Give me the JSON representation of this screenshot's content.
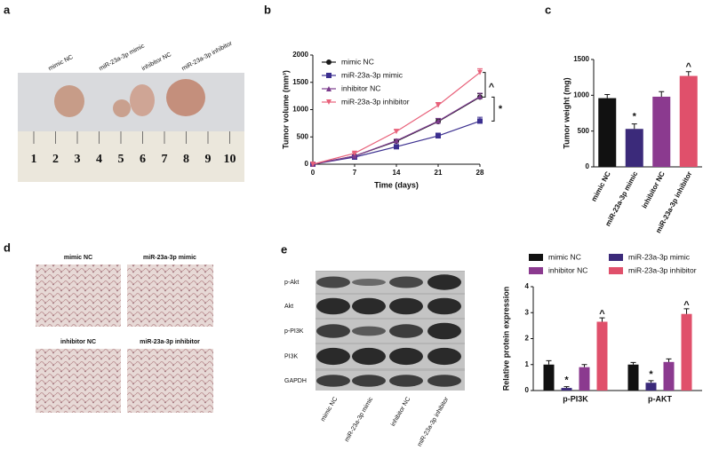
{
  "panels": {
    "a": {
      "letter": "a",
      "groups": [
        "mimic NC",
        "miR-23a-3p mimic",
        "inhibitor NC",
        "miR-23a-3p inhibitor"
      ],
      "ruler": [
        1,
        2,
        3,
        4,
        5,
        6,
        7,
        8,
        9,
        10
      ]
    },
    "d": {
      "letter": "d",
      "images": [
        "mimic NC",
        "miR-23a-3p mimic",
        "inhibitor NC",
        "miR-23a-3p inhibitor"
      ]
    },
    "e": {
      "letter": "e",
      "proteins": [
        "p-Akt",
        "Akt",
        "p-PI3K",
        "PI3K",
        "GAPDH"
      ],
      "lanes": [
        "mimic NC",
        "miR-23a-3p mimic",
        "inhibitor NC",
        "miR-23a-3p inhibitor"
      ]
    }
  },
  "chart_data": [
    {
      "panel": "b",
      "type": "line",
      "x_label": "Time (days)",
      "y_label": "Tumor volume (mm³)",
      "x": [
        0,
        7,
        14,
        21,
        28
      ],
      "xlim": [
        0,
        28
      ],
      "xticks": [
        0,
        7,
        14,
        21,
        28
      ],
      "ylim": [
        0,
        2000
      ],
      "yticks": [
        0,
        500,
        1000,
        1500,
        2000
      ],
      "legend": "upper left",
      "series": [
        {
          "name": "mimic NC",
          "color": "#1a1a1a",
          "marker": "circle",
          "values": [
            0,
            150,
            420,
            780,
            1230
          ],
          "errors": [
            0,
            20,
            30,
            50,
            60
          ]
        },
        {
          "name": "miR-23a-3p mimic",
          "color": "#3b2f8f",
          "marker": "square",
          "values": [
            0,
            130,
            320,
            520,
            790
          ],
          "errors": [
            0,
            20,
            30,
            50,
            70
          ]
        },
        {
          "name": "inhibitor NC",
          "color": "#7b3b8c",
          "marker": "triangle",
          "values": [
            0,
            150,
            430,
            790,
            1240
          ],
          "errors": [
            0,
            20,
            30,
            50,
            60
          ]
        },
        {
          "name": "miR-23a-3p inhibitor",
          "color": "#e8617a",
          "marker": "triangle-down",
          "values": [
            0,
            200,
            600,
            1080,
            1680
          ],
          "errors": [
            0,
            20,
            30,
            50,
            70
          ]
        }
      ],
      "annotations": [
        {
          "text": "^",
          "between": [
            "miR-23a-3p inhibitor",
            "mimic NC"
          ]
        },
        {
          "text": "*",
          "between": [
            "mimic NC",
            "miR-23a-3p mimic"
          ]
        }
      ]
    },
    {
      "panel": "c",
      "type": "bar",
      "y_label": "Tumor weight (mg)",
      "categories": [
        "mimic NC",
        "miR-23a-3p mimic",
        "inhibitor NC",
        "miR-23a-3p inhibitor"
      ],
      "values": [
        960,
        530,
        980,
        1270
      ],
      "errors": [
        50,
        70,
        70,
        60
      ],
      "colors": [
        "#111111",
        "#3b2a7a",
        "#8b3a8f",
        "#e0506b"
      ],
      "ylim": [
        0,
        1500
      ],
      "yticks": [
        0,
        500,
        1000,
        1500
      ],
      "annotations": [
        {
          "text": "*",
          "category": "miR-23a-3p mimic"
        },
        {
          "text": "^",
          "category": "miR-23a-3p inhibitor"
        }
      ]
    },
    {
      "panel": "",
      "type": "grouped_bar",
      "y_label": "Relative protein expression",
      "categories": [
        "p-PI3K",
        "p-AKT"
      ],
      "ylim": [
        0,
        4
      ],
      "yticks": [
        0,
        1,
        2,
        3,
        4
      ],
      "legend": "top",
      "series": [
        {
          "name": "mimic NC",
          "color": "#111111",
          "values": [
            1.0,
            1.0
          ],
          "errors": [
            0.15,
            0.08
          ]
        },
        {
          "name": "miR-23a-3p mimic",
          "color": "#3b2a7a",
          "values": [
            0.1,
            0.3
          ],
          "errors": [
            0.05,
            0.08
          ]
        },
        {
          "name": "inhibitor NC",
          "color": "#8b3a8f",
          "values": [
            0.9,
            1.1
          ],
          "errors": [
            0.1,
            0.12
          ]
        },
        {
          "name": "miR-23a-3p inhibitor",
          "color": "#e0506b",
          "values": [
            2.65,
            2.95
          ],
          "errors": [
            0.15,
            0.2
          ]
        }
      ],
      "annotations": [
        {
          "text": "*",
          "category": "p-PI3K",
          "series": "miR-23a-3p mimic"
        },
        {
          "text": "^",
          "category": "p-PI3K",
          "series": "miR-23a-3p inhibitor"
        },
        {
          "text": "*",
          "category": "p-AKT",
          "series": "miR-23a-3p mimic"
        },
        {
          "text": "^",
          "category": "p-AKT",
          "series": "miR-23a-3p inhibitor"
        }
      ]
    }
  ]
}
